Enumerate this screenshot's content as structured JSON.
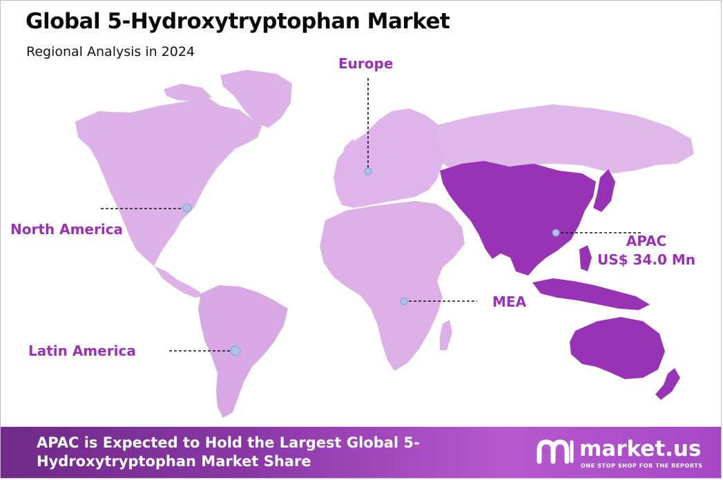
{
  "header": {
    "title": "Global 5-Hydroxytryptophan Market",
    "subtitle": "Regional Analysis in 2024"
  },
  "regions": [
    {
      "name": "North America",
      "highlighted": false
    },
    {
      "name": "Europe",
      "highlighted": false
    },
    {
      "name": "APAC",
      "highlighted": true,
      "value": "US$ 34.0 Mn"
    },
    {
      "name": "MEA",
      "highlighted": false
    },
    {
      "name": "Latin America",
      "highlighted": false
    }
  ],
  "colors": {
    "north_america": "#ddb2e8",
    "europe": "#dfb4ea",
    "apac": "#9933b5",
    "mea": "#dcafe7",
    "latin_america": "#d8a8e4",
    "label": "#9b2fb8",
    "marker": "#a9c4e6",
    "banner_start": "#6f2a86",
    "banner_end": "#b659cf"
  },
  "footer": {
    "headline": "APAC is Expected to Hold the Largest Global 5-Hydroxytryptophan Market Share",
    "logo_name": "market.us",
    "logo_tagline": "ONE STOP SHOP FOR THE REPORTS"
  }
}
